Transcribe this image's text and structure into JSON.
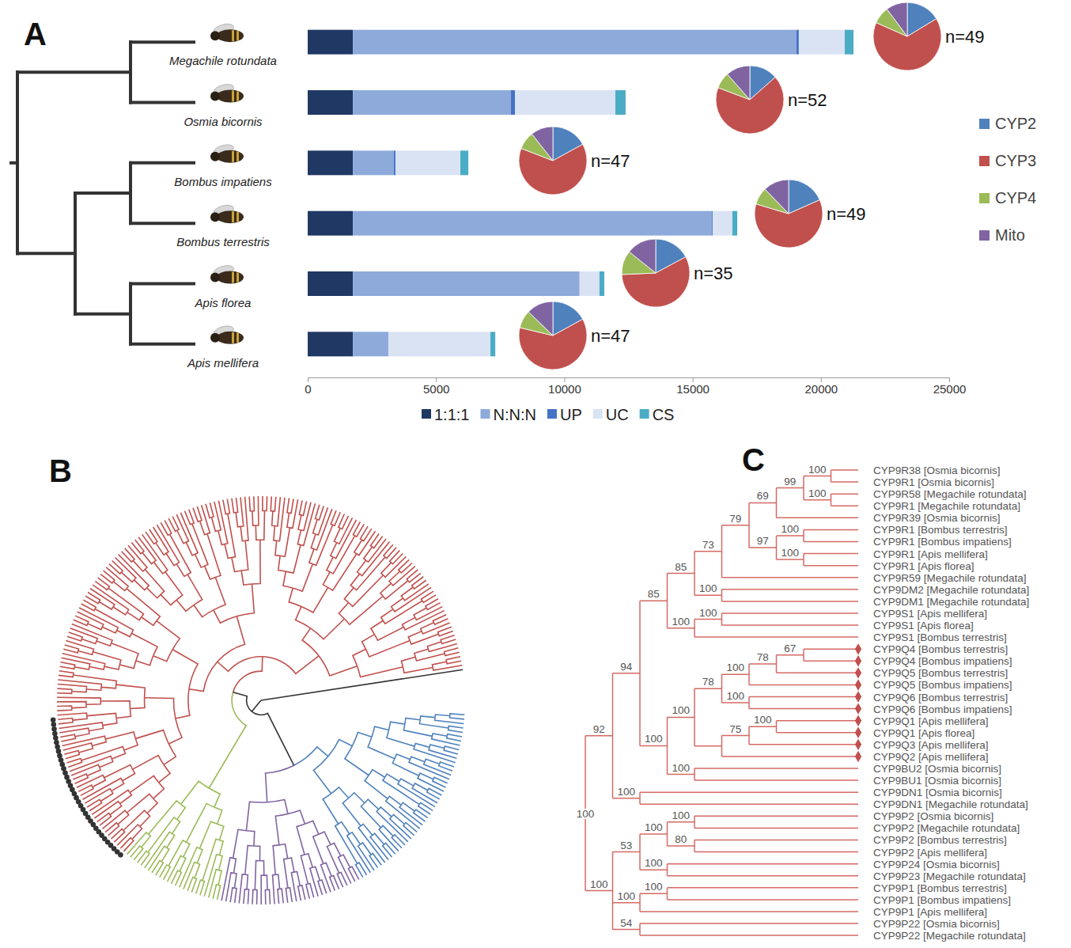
{
  "panel_labels": [
    "A",
    "B",
    "C"
  ],
  "chart_data": [
    {
      "type": "bar",
      "orientation": "horizontal",
      "stacked": true,
      "legend": "bottom",
      "categories": [
        "Megachile rotundata",
        "Osmia bicornis",
        "Bombus impatiens",
        "Bombus terrestris",
        "Apis florea",
        "Apis mellifera"
      ],
      "series": [
        {
          "name": "1:1:1",
          "color": "#203864",
          "values": [
            1760,
            1760,
            1760,
            1760,
            1760,
            1760
          ]
        },
        {
          "name": "N:N:N",
          "color": "#8eaadb",
          "values": [
            17290,
            6160,
            1600,
            13990,
            8810,
            1380
          ]
        },
        {
          "name": "UP",
          "color": "#4472c4",
          "values": [
            90,
            160,
            60,
            30,
            20,
            10
          ]
        },
        {
          "name": "UC",
          "color": "#dae3f3",
          "values": [
            1790,
            3910,
            2530,
            770,
            780,
            3970
          ]
        },
        {
          "name": "CS",
          "color": "#4bacc6",
          "values": [
            340,
            400,
            310,
            190,
            190,
            190
          ]
        }
      ],
      "xlim": [
        0,
        25000
      ],
      "xticks": [
        0,
        5000,
        10000,
        15000,
        20000,
        25000
      ]
    },
    {
      "type": "pie",
      "legend": "right",
      "categories": [
        "CYP2",
        "CYP3",
        "CYP4",
        "Mito"
      ],
      "values": [
        8,
        32,
        4,
        5
      ],
      "colors": [
        "#4f81bd",
        "#c0504d",
        "#9bbb59",
        "#8064a2"
      ],
      "annotations": [
        "n=49"
      ]
    },
    {
      "type": "pie",
      "categories": [
        "CYP2",
        "CYP3",
        "CYP4",
        "Mito"
      ],
      "values": [
        7,
        35,
        4,
        6
      ],
      "colors": [
        "#4f81bd",
        "#c0504d",
        "#9bbb59",
        "#8064a2"
      ],
      "annotations": [
        "n=52"
      ]
    },
    {
      "type": "pie",
      "categories": [
        "CYP2",
        "CYP3",
        "CYP4",
        "Mito"
      ],
      "values": [
        8,
        30,
        4,
        5
      ],
      "colors": [
        "#4f81bd",
        "#c0504d",
        "#9bbb59",
        "#8064a2"
      ],
      "annotations": [
        "n=47"
      ]
    },
    {
      "type": "pie",
      "categories": [
        "CYP2",
        "CYP3",
        "CYP4",
        "Mito"
      ],
      "values": [
        9,
        30,
        4,
        6
      ],
      "colors": [
        "#4f81bd",
        "#c0504d",
        "#9bbb59",
        "#8064a2"
      ],
      "annotations": [
        "n=49"
      ]
    },
    {
      "type": "pie",
      "categories": [
        "CYP2",
        "CYP3",
        "CYP4",
        "Mito"
      ],
      "values": [
        6,
        20,
        4,
        5
      ],
      "colors": [
        "#4f81bd",
        "#c0504d",
        "#9bbb59",
        "#8064a2"
      ],
      "annotations": [
        "n=35"
      ]
    },
    {
      "type": "pie",
      "categories": [
        "CYP2",
        "CYP3",
        "CYP4",
        "Mito"
      ],
      "values": [
        8,
        29,
        4,
        6
      ],
      "colors": [
        "#4f81bd",
        "#c0504d",
        "#9bbb59",
        "#8064a2"
      ],
      "annotations": [
        "n=47"
      ]
    }
  ],
  "tree_b": {
    "clades": [
      {
        "color": "#4f81bd",
        "leaves": 46
      },
      {
        "color": "#8064a2",
        "leaves": 33
      },
      {
        "color": "#9bbb59",
        "leaves": 24
      },
      {
        "color": "#c0504d",
        "leaves": 176,
        "highlighted": 35
      }
    ]
  },
  "tree_c": {
    "root": {
      "support": 100,
      "children": [
        {
          "support": 92,
          "children": [
            {
              "support": 94,
              "children": [
                {
                  "support": 85,
                  "children": [
                    {
                      "support": 85,
                      "children": [
                        {
                          "support": 73,
                          "children": [
                            {
                              "support": 79,
                              "children": [
                                {
                                  "support": 69,
                                  "children": [
                                    {
                                      "support": 99,
                                      "children": [
                                        {
                                          "support": 100,
                                          "children": [
                                            {
                                              "label": "CYP9R38 [Osmia bicornis]"
                                            },
                                            {
                                              "label": "CYP9R1 [Osmia bicornis]"
                                            }
                                          ]
                                        },
                                        {
                                          "support": 100,
                                          "children": [
                                            {
                                              "label": "CYP9R58 [Megachile rotundata]"
                                            },
                                            {
                                              "label": "CYP9R1 [Megachile rotundata]"
                                            }
                                          ]
                                        }
                                      ]
                                    },
                                    {
                                      "label": "CYP9R39 [Osmia bicornis]"
                                    }
                                  ]
                                },
                                {
                                  "support": 97,
                                  "children": [
                                    {
                                      "support": 100,
                                      "children": [
                                        {
                                          "label": "CYP9R1 [Bombus terrestris]"
                                        },
                                        {
                                          "label": "CYP9R1 [Bombus impatiens]"
                                        }
                                      ]
                                    },
                                    {
                                      "support": 100,
                                      "children": [
                                        {
                                          "label": "CYP9R1 [Apis mellifera]"
                                        },
                                        {
                                          "label": "CYP9R1 [Apis florea]"
                                        }
                                      ]
                                    }
                                  ]
                                }
                              ]
                            },
                            {
                              "label": "CYP9R59 [Megachile rotundata]"
                            }
                          ]
                        },
                        {
                          "support": 100,
                          "children": [
                            {
                              "label": "CYP9DM2 [Megachile rotundata]"
                            },
                            {
                              "label": "CYP9DM1 [Megachile rotundata]"
                            }
                          ]
                        }
                      ]
                    },
                    {
                      "support": 100,
                      "children": [
                        {
                          "support": 100,
                          "children": [
                            {
                              "label": "CYP9S1 [Apis mellifera]"
                            },
                            {
                              "label": "CYP9S1 [Apis florea]"
                            }
                          ]
                        },
                        {
                          "label": "CYP9S1 [Bombus terrestris]"
                        }
                      ]
                    }
                  ]
                },
                {
                  "support": 100,
                  "children": [
                    {
                      "support": 100,
                      "children": [
                        {
                          "support": 78,
                          "children": [
                            {
                              "support": 100,
                              "children": [
                                {
                                  "support": 78,
                                  "children": [
                                    {
                                      "support": 67,
                                      "children": [
                                        {
                                          "label": "CYP9Q4 [Bombus terrestris]",
                                          "marked": true
                                        },
                                        {
                                          "label": "CYP9Q4 [Bombus impatiens]",
                                          "marked": true
                                        }
                                      ]
                                    },
                                    {
                                      "label": "CYP9Q5 [Bombus terrestris]",
                                      "marked": true
                                    }
                                  ]
                                },
                                {
                                  "label": "CYP9Q5 [Bombus impatiens]",
                                  "marked": true
                                }
                              ]
                            },
                            {
                              "support": 100,
                              "children": [
                                {
                                  "label": "CYP9Q6 [Bombus terrestris]",
                                  "marked": true
                                },
                                {
                                  "label": "CYP9Q6 [Bombus impatiens]",
                                  "marked": true
                                }
                              ]
                            }
                          ]
                        },
                        {
                          "children": [
                            {
                              "support": 75,
                              "children": [
                                {
                                  "support": 100,
                                  "children": [
                                    {
                                      "label": "CYP9Q1 [Apis mellifera]",
                                      "marked": true
                                    },
                                    {
                                      "label": "CYP9Q1 [Apis florea]",
                                      "marked": true
                                    }
                                  ]
                                },
                                {
                                  "label": "CYP9Q3 [Apis mellifera]",
                                  "marked": true
                                }
                              ]
                            },
                            {
                              "label": "CYP9Q2 [Apis mellifera]",
                              "marked": true
                            }
                          ]
                        }
                      ]
                    },
                    {
                      "support": 100,
                      "children": [
                        {
                          "label": "CYP9BU2 [Osmia bicornis]"
                        },
                        {
                          "label": "CYP9BU1 [Osmia bicornis]"
                        }
                      ]
                    }
                  ]
                }
              ]
            },
            {
              "support": 100,
              "children": [
                {
                  "label": "CYP9DN1 [Osmia bicornis]"
                },
                {
                  "label": "CYP9DN1 [Megachile rotundata]"
                }
              ]
            }
          ]
        },
        {
          "support": 100,
          "children": [
            {
              "support": 53,
              "children": [
                {
                  "support": 100,
                  "children": [
                    {
                      "support": 100,
                      "children": [
                        {
                          "label": "CYP9P2 [Osmia bicornis]"
                        },
                        {
                          "label": "CYP9P2 [Megachile rotundata]"
                        }
                      ]
                    },
                    {
                      "support": 80,
                      "children": [
                        {
                          "label": "CYP9P2 [Bombus terrestris]"
                        },
                        {
                          "label": "CYP9P2 [Apis mellifera]"
                        }
                      ]
                    }
                  ]
                },
                {
                  "support": 100,
                  "children": [
                    {
                      "label": "CYP9P24 [Osmia bicornis]"
                    },
                    {
                      "label": "CYP9P23 [Megachile rotundata]"
                    }
                  ]
                }
              ]
            },
            {
              "support": 100,
              "children": [
                {
                  "support": 100,
                  "children": [
                    {
                      "label": "CYP9P1 [Bombus terrestris]"
                    },
                    {
                      "label": "CYP9P1 [Bombus impatiens]"
                    }
                  ]
                },
                {
                  "label": "CYP9P1 [Apis mellifera]"
                }
              ]
            },
            {
              "support": 54,
              "children": [
                {
                  "label": "CYP9P22 [Osmia bicornis]"
                },
                {
                  "label": "CYP9P22 [Megachile rotundata]"
                }
              ]
            }
          ]
        }
      ]
    }
  }
}
